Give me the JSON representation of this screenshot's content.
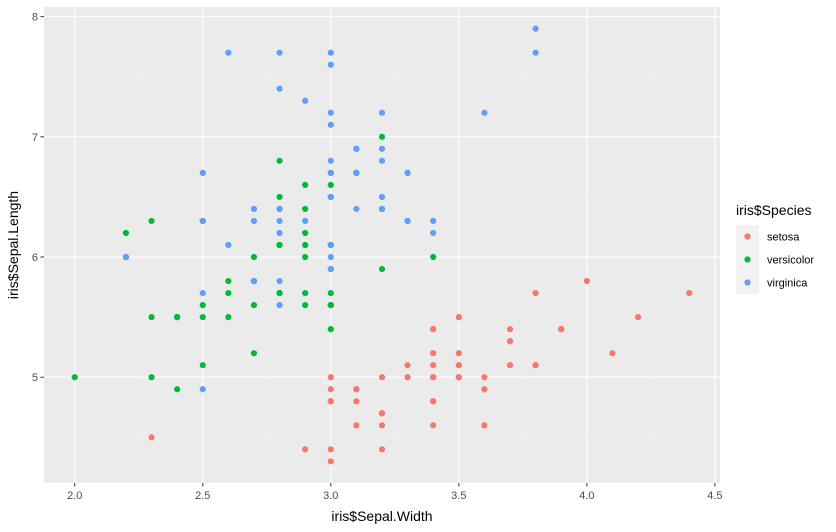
{
  "chart_data": {
    "type": "scatter",
    "title": "",
    "xlabel": "iris$Sepal.Width",
    "ylabel": "iris$Sepal.Length",
    "xlim": [
      1.88,
      4.52
    ],
    "ylim": [
      4.12,
      8.08
    ],
    "x_ticks": [
      2.0,
      2.5,
      3.0,
      3.5,
      4.0,
      4.5
    ],
    "x_tick_labels": [
      "2.0",
      "2.5",
      "3.0",
      "3.5",
      "4.0",
      "4.5"
    ],
    "y_ticks": [
      5,
      6,
      7,
      8
    ],
    "y_tick_labels": [
      "5",
      "6",
      "7",
      "8"
    ],
    "grid": true,
    "legend": {
      "title": "iris$Species",
      "placement": "right"
    },
    "series": [
      {
        "name": "setosa",
        "color": "#F8766D",
        "x": [
          3.5,
          3.0,
          3.2,
          3.1,
          3.6,
          3.9,
          3.4,
          3.4,
          2.9,
          3.1,
          3.7,
          3.4,
          3.0,
          3.0,
          4.0,
          4.4,
          3.9,
          3.5,
          3.8,
          3.8,
          3.4,
          3.7,
          3.6,
          3.3,
          3.4,
          3.0,
          3.4,
          3.5,
          3.4,
          3.2,
          3.1,
          3.4,
          4.1,
          4.2,
          3.1,
          3.2,
          3.5,
          3.6,
          3.0,
          3.4,
          3.5,
          2.3,
          3.2,
          3.5,
          3.8,
          3.0,
          3.8,
          3.2,
          3.7,
          3.3
        ],
        "y": [
          5.1,
          4.9,
          4.7,
          4.6,
          5.0,
          5.4,
          4.6,
          5.0,
          4.4,
          4.9,
          5.4,
          4.8,
          4.8,
          4.3,
          5.8,
          5.7,
          5.4,
          5.1,
          5.7,
          5.1,
          5.4,
          5.1,
          4.6,
          5.1,
          4.8,
          5.0,
          5.0,
          5.2,
          5.2,
          4.7,
          4.8,
          5.4,
          5.2,
          5.5,
          4.9,
          5.0,
          5.5,
          4.9,
          4.4,
          5.1,
          5.0,
          4.5,
          4.4,
          5.0,
          5.1,
          4.8,
          5.1,
          4.6,
          5.3,
          5.0
        ]
      },
      {
        "name": "versicolor",
        "color": "#00BA38",
        "x": [
          3.2,
          3.2,
          3.1,
          2.3,
          2.8,
          2.8,
          3.3,
          2.4,
          2.9,
          2.7,
          2.0,
          3.0,
          2.2,
          2.9,
          2.9,
          3.1,
          3.0,
          2.7,
          2.2,
          2.5,
          3.2,
          2.8,
          2.5,
          2.8,
          2.9,
          3.0,
          2.8,
          3.0,
          2.9,
          2.6,
          2.4,
          2.4,
          2.7,
          2.7,
          3.0,
          3.4,
          3.1,
          2.3,
          3.0,
          2.5,
          2.6,
          3.0,
          2.6,
          2.3,
          2.7,
          3.0,
          2.9,
          2.9,
          2.5,
          2.8
        ],
        "y": [
          7.0,
          6.4,
          6.9,
          5.5,
          6.5,
          5.7,
          6.3,
          4.9,
          6.6,
          5.2,
          5.0,
          5.9,
          6.0,
          6.1,
          5.6,
          6.7,
          5.6,
          5.8,
          6.2,
          5.6,
          5.9,
          6.1,
          6.3,
          6.1,
          6.4,
          6.6,
          6.8,
          6.7,
          6.0,
          5.7,
          5.5,
          5.5,
          5.8,
          6.0,
          5.4,
          6.0,
          6.7,
          6.3,
          5.6,
          5.5,
          5.5,
          6.1,
          5.8,
          5.0,
          5.6,
          5.7,
          5.7,
          6.2,
          5.1,
          5.7
        ]
      },
      {
        "name": "virginica",
        "color": "#619CFF",
        "x": [
          3.3,
          2.7,
          3.0,
          2.9,
          3.0,
          3.0,
          2.5,
          2.9,
          2.5,
          3.6,
          3.2,
          2.7,
          3.0,
          2.5,
          2.8,
          3.2,
          3.0,
          3.8,
          2.6,
          2.2,
          3.2,
          2.8,
          2.8,
          2.7,
          3.3,
          3.2,
          2.8,
          3.0,
          2.8,
          3.0,
          2.8,
          3.8,
          2.8,
          2.8,
          2.6,
          3.0,
          3.4,
          3.1,
          3.0,
          3.1,
          3.1,
          3.1,
          2.7,
          3.2,
          3.3,
          3.0,
          2.5,
          3.0,
          3.4,
          3.0
        ],
        "y": [
          6.3,
          5.8,
          7.1,
          6.3,
          6.5,
          7.6,
          4.9,
          7.3,
          6.7,
          7.2,
          6.5,
          6.4,
          6.8,
          5.7,
          5.8,
          6.4,
          6.5,
          7.7,
          7.7,
          6.0,
          6.9,
          5.6,
          7.7,
          6.3,
          6.7,
          7.2,
          6.2,
          6.1,
          6.4,
          7.2,
          7.4,
          7.9,
          6.4,
          6.3,
          6.1,
          7.7,
          6.3,
          6.4,
          6.0,
          6.9,
          6.7,
          6.9,
          5.8,
          6.8,
          6.7,
          6.7,
          6.3,
          6.5,
          6.2,
          5.9
        ]
      }
    ]
  }
}
